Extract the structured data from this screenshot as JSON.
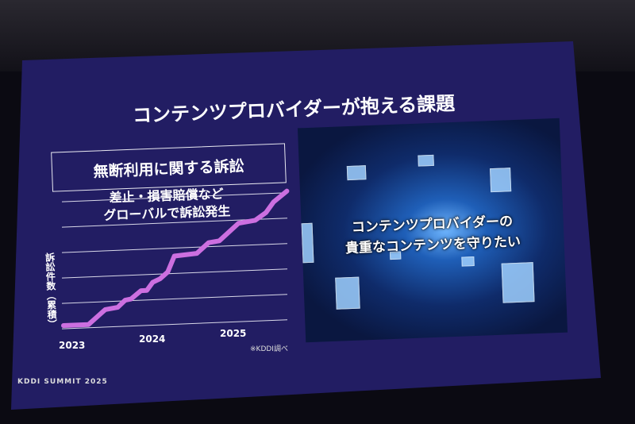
{
  "slide": {
    "title": "コンテンツプロバイダーが抱える課題",
    "box_heading": "無断利用に関する訴訟",
    "subtitle_lines": [
      "差止・損害賠償など",
      "グローバルで訴訟発生"
    ],
    "image_caption_lines": [
      "コンテンツプロバイダーの",
      "貴重なコンテンツを守りたい"
    ],
    "note": "※KDDI調べ",
    "logo": "KDDI SUMMIT 2025",
    "colors": {
      "background": "#241f66",
      "line": "#cc6fe0",
      "text": "#ffffff"
    }
  },
  "chart_data": {
    "type": "line",
    "title": "",
    "ylabel": "訴訟件数（累積）",
    "xlabel": "",
    "x_ticks": [
      "2023",
      "2024",
      "2025"
    ],
    "xlim": [
      2023,
      2025.7
    ],
    "grid": true,
    "series": [
      {
        "x": [
          2023.0,
          2023.3,
          2023.5,
          2023.65,
          2023.74,
          2023.81,
          2023.93,
          2024.0,
          2024.07,
          2024.16,
          2024.25,
          2024.33,
          2024.6,
          2024.74,
          2024.87,
          2025.1,
          2025.3,
          2025.43,
          2025.52,
          2025.68
        ],
        "y": [
          0,
          0,
          0.56,
          0.63,
          0.9,
          0.94,
          1.25,
          1.25,
          1.56,
          1.69,
          1.94,
          2.56,
          2.63,
          3.03,
          3.09,
          3.75,
          3.84,
          4.13,
          4.53,
          4.94
        ]
      }
    ]
  }
}
